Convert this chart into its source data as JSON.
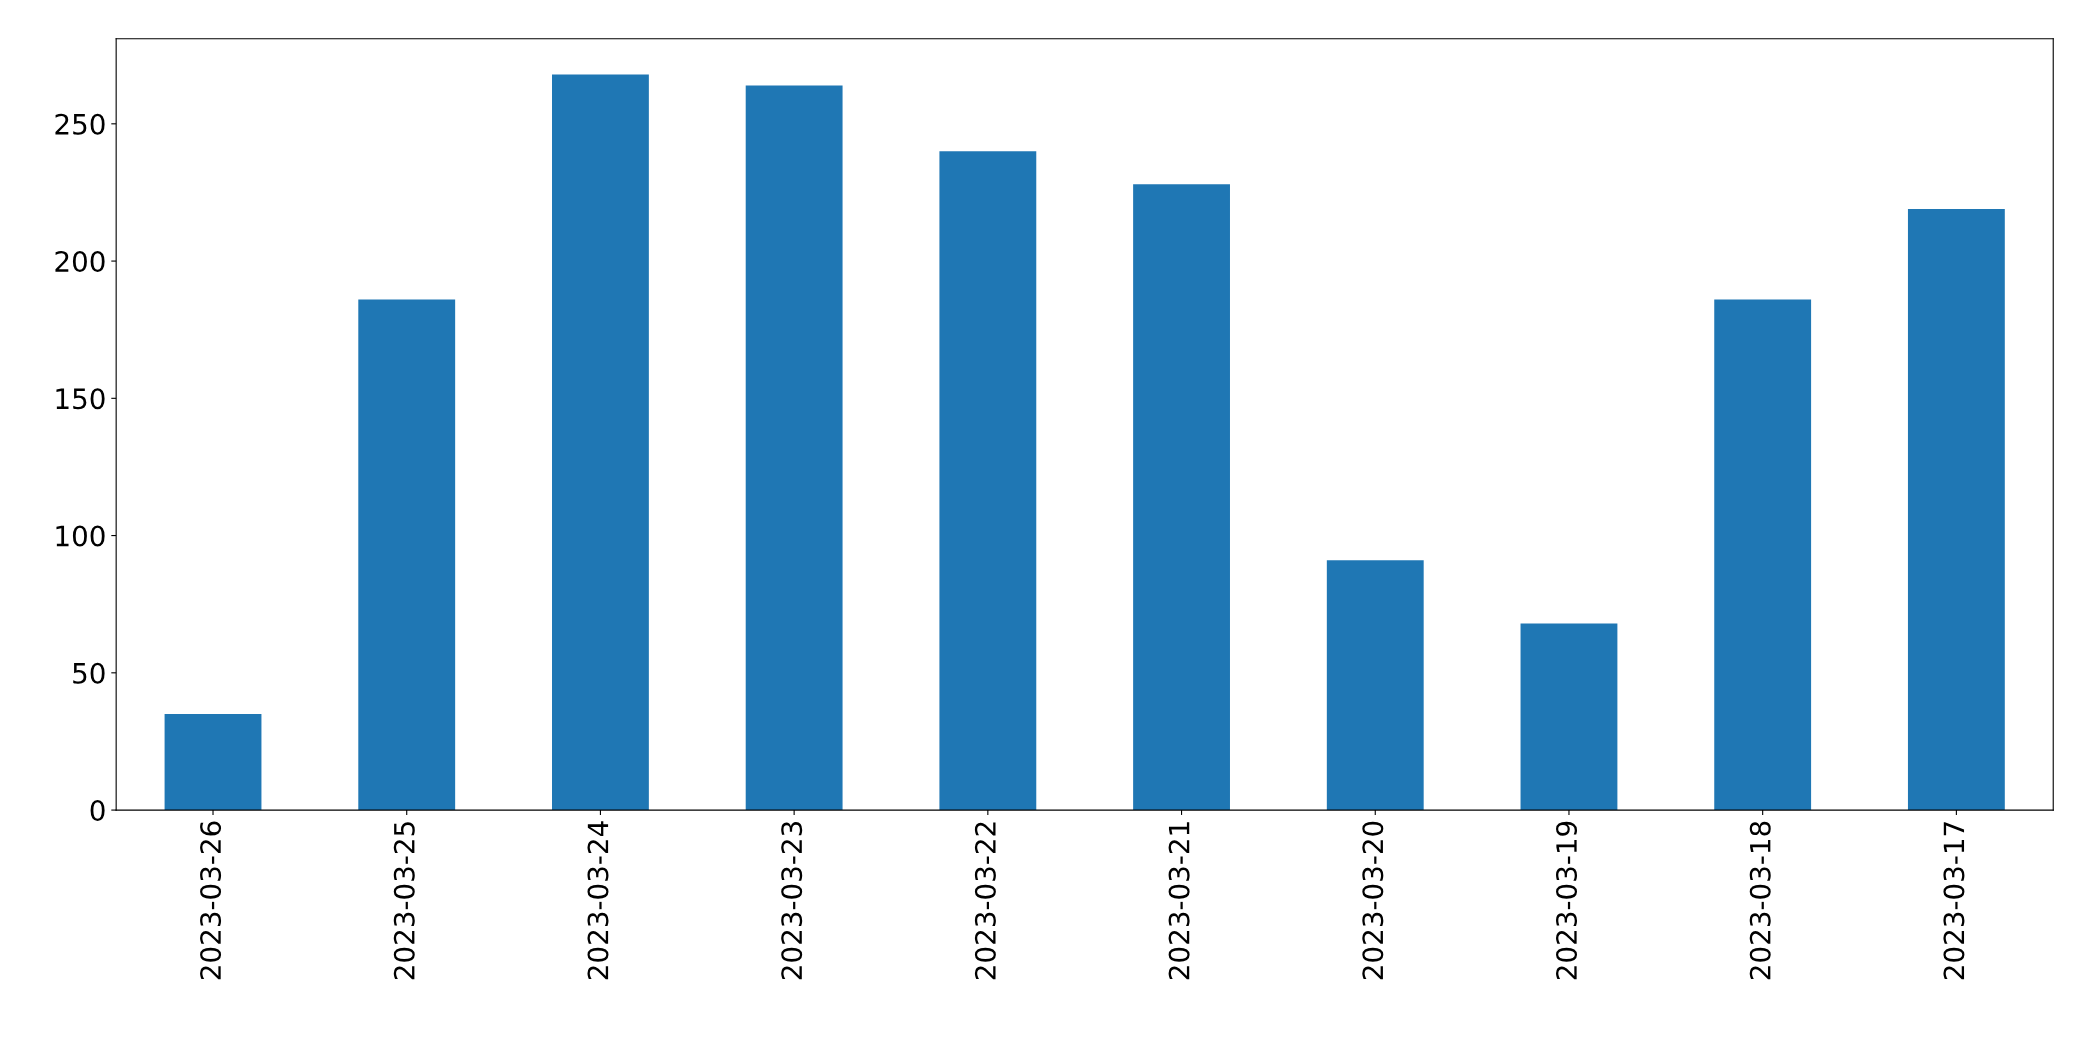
{
  "chart_data": {
    "type": "bar",
    "categories": [
      "2023-03-26",
      "2023-03-25",
      "2023-03-24",
      "2023-03-23",
      "2023-03-22",
      "2023-03-21",
      "2023-03-20",
      "2023-03-19",
      "2023-03-18",
      "2023-03-17"
    ],
    "values": [
      35,
      186,
      268,
      264,
      240,
      228,
      91,
      68,
      186,
      219
    ],
    "color": "#1f77b4",
    "ylim": [
      0,
      281
    ],
    "yticks": [
      0,
      50,
      100,
      150,
      200,
      250
    ],
    "grid": false,
    "legend": false
  }
}
